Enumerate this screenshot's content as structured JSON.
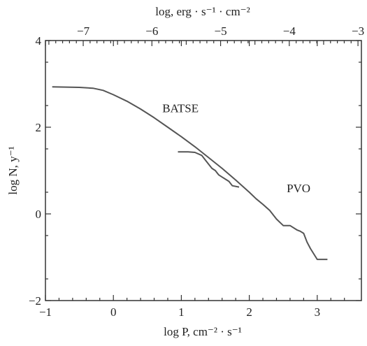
{
  "chart_data": {
    "type": "line",
    "xlim": [
      -1,
      3.65
    ],
    "ylim": [
      -2,
      4
    ],
    "x_ticks": [
      -1,
      0,
      1,
      2,
      3
    ],
    "x_tick_labels": [
      "−1",
      "0",
      "1",
      "2",
      "3"
    ],
    "y_ticks": [
      -2,
      0,
      2,
      4
    ],
    "y_tick_labels": [
      "−2",
      "0",
      "2",
      "4"
    ],
    "top_axis": {
      "xlim": [
        -7.55,
        -2.95
      ],
      "ticks": [
        -7,
        -6,
        -5,
        -4,
        -3
      ],
      "tick_labels": [
        "−7",
        "−6",
        "−5",
        "−4",
        "−3"
      ],
      "label": "log, erg · s⁻¹ · cm⁻²"
    },
    "xlabel": "log P, cm⁻² · s⁻¹",
    "ylabel": "log N, y⁻¹",
    "annotations": [
      "BATSE",
      "PVO"
    ],
    "series": [
      {
        "name": "BATSE",
        "x": [
          -0.9,
          -0.5,
          -0.3,
          -0.15,
          0.0,
          0.2,
          0.4,
          0.6,
          0.8,
          1.0,
          1.2,
          1.4,
          1.6,
          1.8,
          2.0,
          2.1,
          2.2,
          2.3,
          2.4,
          2.5,
          2.55,
          2.6,
          2.7,
          2.75,
          2.8,
          2.85,
          2.9,
          3.0,
          3.15
        ],
        "y": [
          2.93,
          2.92,
          2.9,
          2.85,
          2.75,
          2.6,
          2.42,
          2.22,
          2.0,
          1.78,
          1.55,
          1.3,
          1.05,
          0.78,
          0.5,
          0.35,
          0.22,
          0.08,
          -0.12,
          -0.27,
          -0.27,
          -0.27,
          -0.37,
          -0.4,
          -0.45,
          -0.65,
          -0.8,
          -1.05,
          -1.05
        ]
      },
      {
        "name": "PVO",
        "x": [
          0.95,
          1.1,
          1.2,
          1.3,
          1.35,
          1.4,
          1.45,
          1.5,
          1.55,
          1.6,
          1.7,
          1.75,
          1.85
        ],
        "y": [
          1.43,
          1.43,
          1.42,
          1.35,
          1.25,
          1.15,
          1.05,
          1.0,
          0.9,
          0.85,
          0.75,
          0.65,
          0.62
        ]
      }
    ],
    "grid": false,
    "legend": "none"
  }
}
